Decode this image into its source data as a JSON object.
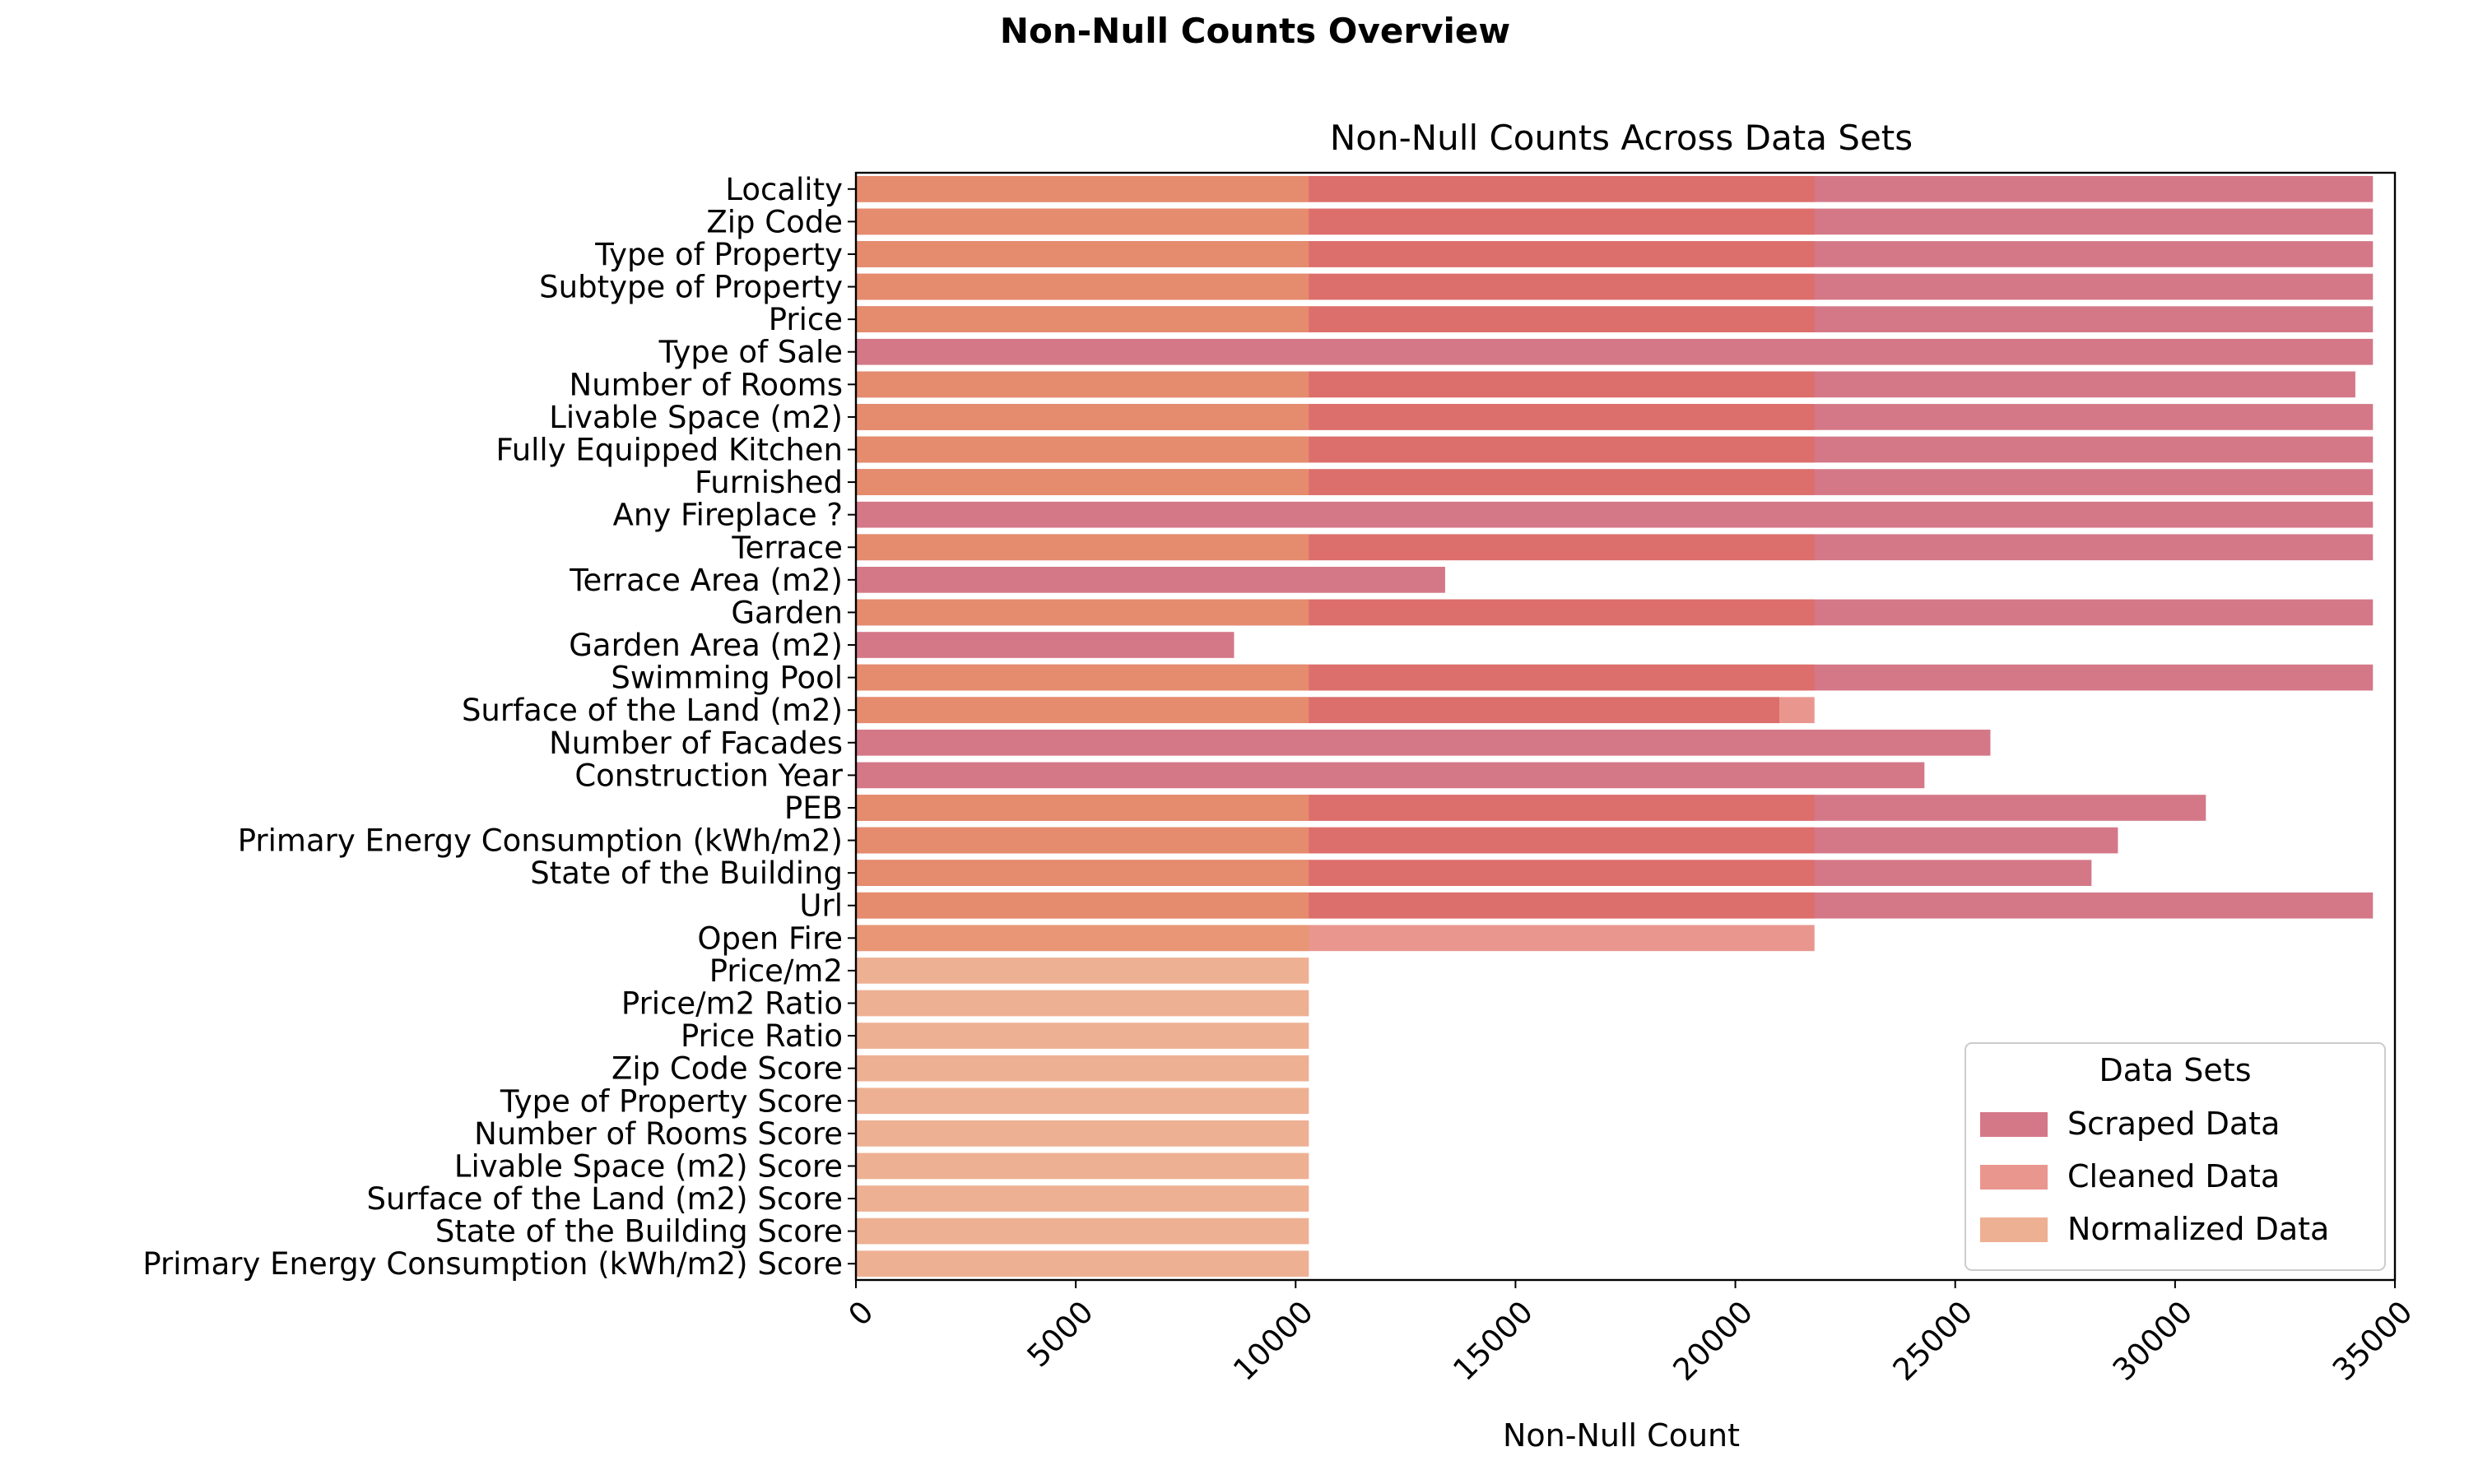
{
  "figure": {
    "suptitle": "Non-Null Counts Overview"
  },
  "chart_data": {
    "type": "bar",
    "orientation": "horizontal",
    "title": "Non-Null Counts Across Data Sets",
    "xlabel": "Non-Null Count",
    "ylabel": "",
    "xlim": [
      0,
      35000
    ],
    "xticks": [
      0,
      5000,
      10000,
      15000,
      20000,
      25000,
      30000,
      35000
    ],
    "xtick_labels": [
      "0",
      "5000",
      "10000",
      "15000",
      "20000",
      "25000",
      "30000",
      "35000"
    ],
    "xtick_rotation": 45,
    "grid": false,
    "legend": {
      "title": "Data Sets",
      "placement": "lower-right",
      "entries": [
        "Scraped Data",
        "Cleaned Data",
        "Normalized Data"
      ]
    },
    "categories": [
      "Locality",
      "Zip Code",
      "Type of Property",
      "Subtype of Property",
      "Price",
      "Type of Sale",
      "Number of Rooms",
      "Livable Space (m2)",
      "Fully Equipped Kitchen",
      "Furnished",
      "Any Fireplace ?",
      "Terrace",
      "Terrace Area (m2)",
      "Garden",
      "Garden Area (m2)",
      "Swimming Pool",
      "Surface of the Land (m2)",
      "Number of Facades",
      "Construction Year",
      "PEB",
      "Primary Energy Consumption (kWh/m2)",
      "State of the Building",
      "Url",
      "Open Fire",
      "Price/m2",
      "Price/m2 Ratio",
      "Price Ratio",
      "Zip Code Score",
      "Type of Property Score",
      "Number of Rooms Score",
      "Livable Space (m2) Score",
      "Surface of the Land (m2) Score",
      "State of the Building Score",
      "Primary Energy Consumption (kWh/m2) Score"
    ],
    "series": [
      {
        "name": "Scraped Data",
        "color": "#c9566a",
        "opacity": 0.8,
        "values": [
          34500,
          34500,
          34500,
          34500,
          34500,
          34500,
          34100,
          34500,
          34500,
          34500,
          34500,
          34500,
          13400,
          34500,
          8600,
          34500,
          21000,
          25800,
          24300,
          30700,
          28700,
          28100,
          34500,
          null,
          null,
          null,
          null,
          null,
          null,
          null,
          null,
          null,
          null,
          null
        ]
      },
      {
        "name": "Cleaned Data",
        "color": "#e06a5f",
        "opacity": 0.7,
        "values": [
          21800,
          21800,
          21800,
          21800,
          21800,
          null,
          21800,
          21800,
          21800,
          21800,
          null,
          21800,
          null,
          21800,
          null,
          21800,
          21800,
          null,
          null,
          21800,
          21800,
          21800,
          21800,
          21800,
          null,
          null,
          null,
          null,
          null,
          null,
          null,
          null,
          null,
          null
        ]
      },
      {
        "name": "Normalized Data",
        "color": "#e8956f",
        "opacity": 0.75,
        "values": [
          10300,
          10300,
          10300,
          10300,
          10300,
          null,
          10300,
          10300,
          10300,
          10300,
          null,
          10300,
          null,
          10300,
          null,
          10300,
          10300,
          null,
          null,
          10300,
          10300,
          10300,
          10300,
          10300,
          10300,
          10300,
          10300,
          10300,
          10300,
          10300,
          10300,
          10300,
          10300,
          10300
        ]
      }
    ]
  }
}
